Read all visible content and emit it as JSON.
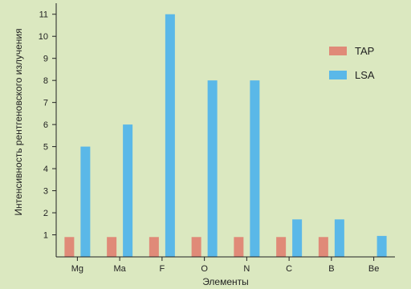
{
  "chart_data": {
    "type": "bar",
    "title": "",
    "xlabel": "Элементы",
    "ylabel": "Интенсивность рентгеновского излучения",
    "categories": [
      "Mg",
      "Ma",
      "F",
      "O",
      "N",
      "C",
      "B",
      "Be"
    ],
    "series": [
      {
        "name": "TAP",
        "color": "#e08a78",
        "values": [
          0.9,
          0.9,
          0.9,
          0.9,
          0.9,
          0.9,
          0.9,
          null
        ]
      },
      {
        "name": "LSA",
        "color": "#5ab8e8",
        "values": [
          5,
          6,
          11,
          8,
          8,
          1.7,
          1.7,
          0.95
        ]
      }
    ],
    "ylim": [
      0,
      11.5
    ],
    "yticks": [
      1,
      2,
      3,
      4,
      5,
      6,
      7,
      8,
      9,
      10,
      11
    ],
    "grid": false,
    "legend": "top-right"
  }
}
